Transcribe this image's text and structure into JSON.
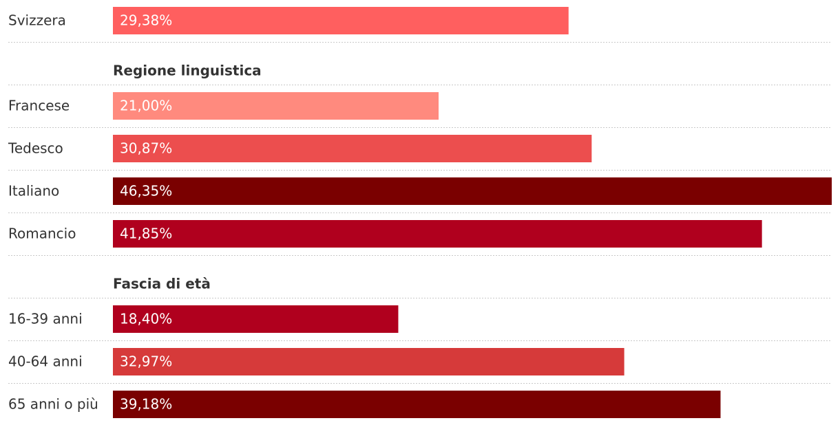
{
  "chart_data": {
    "type": "bar",
    "groups": [
      {
        "categories": [
          "Svizzera"
        ],
        "values": [
          29.38
        ],
        "value_labels": [
          "29,38%"
        ],
        "colors": [
          "#ff5f5f"
        ]
      },
      {
        "title": "Regione linguistica",
        "categories": [
          "Francese",
          "Tedesco",
          "Italiano",
          "Romancio"
        ],
        "values": [
          21.0,
          30.87,
          46.35,
          41.85
        ],
        "value_labels": [
          "21,00%",
          "30,87%",
          "46,35%",
          "41,85%"
        ],
        "colors": [
          "#ff8a7e",
          "#ec4e4e",
          "#7a0000",
          "#b0001e"
        ]
      },
      {
        "title": "Fascia di età",
        "categories": [
          "16-39 anni",
          "40-64 anni",
          "65 anni o più"
        ],
        "values": [
          18.4,
          32.97,
          39.18
        ],
        "value_labels": [
          "18,40%",
          "32,97%",
          "39,18%"
        ],
        "colors": [
          "#b0001e",
          "#d63a3a",
          "#7a0000"
        ]
      }
    ]
  }
}
